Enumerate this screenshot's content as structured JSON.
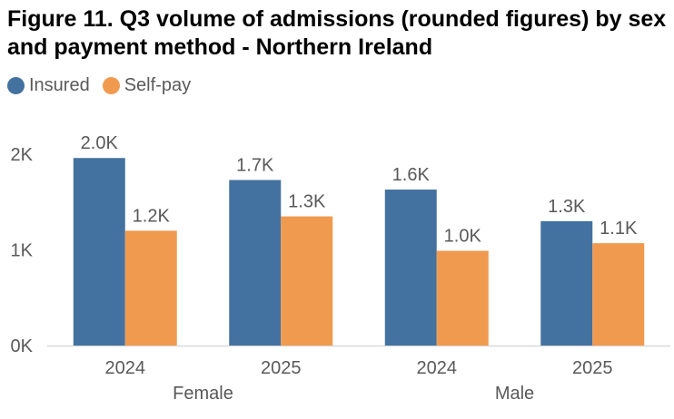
{
  "chart_data": {
    "type": "bar",
    "title": "Figure 11. Q3 volume of admissions (rounded figures) by sex and payment method - Northern Ireland",
    "categories": [
      "2024",
      "2025",
      "2024",
      "2025"
    ],
    "groups": [
      {
        "label": "Female",
        "span": [
          0,
          1
        ]
      },
      {
        "label": "Male",
        "span": [
          2,
          3
        ]
      }
    ],
    "series": [
      {
        "name": "Insured",
        "color": "#4472a0",
        "values": [
          1960,
          1730,
          1630,
          1300
        ],
        "labels": [
          "2.0K",
          "1.7K",
          "1.6K",
          "1.3K"
        ]
      },
      {
        "name": "Self-pay",
        "color": "#f09a50",
        "values": [
          1200,
          1350,
          990,
          1070
        ],
        "labels": [
          "1.2K",
          "1.3K",
          "1.0K",
          "1.1K"
        ]
      }
    ],
    "ylim": [
      0,
      2000
    ],
    "yticks": [
      0,
      1000,
      2000
    ],
    "ytick_labels": [
      "0K",
      "1K",
      "2K"
    ],
    "legend_position": "top-left",
    "grid": false
  }
}
